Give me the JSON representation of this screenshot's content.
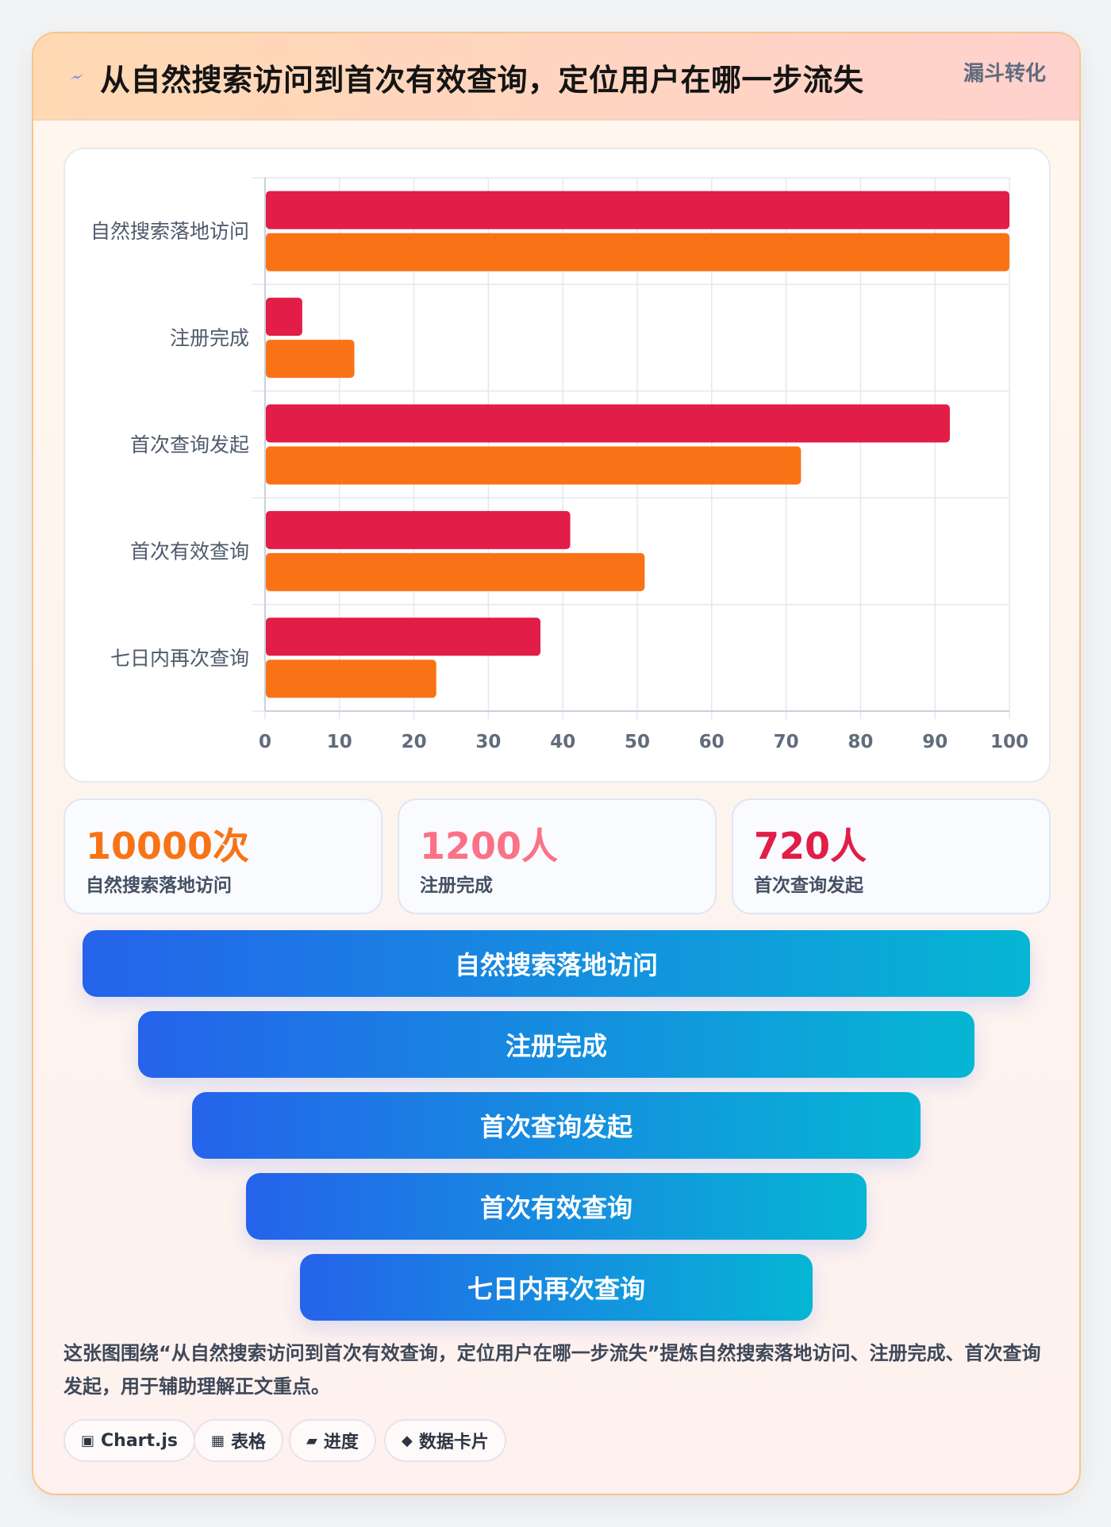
{
  "header": {
    "icon": "lightning-icon",
    "title": "从自然搜索访问到首次有效查询，定位用户在哪一步流失",
    "tag": "漏斗转化"
  },
  "colors": {
    "series_a": "#e11d48",
    "series_b": "#f97316",
    "funnel_from": "#2563eb",
    "funnel_to": "#06b6d4"
  },
  "chart_data": {
    "type": "bar",
    "orientation": "horizontal",
    "categories": [
      "自然搜索落地访问",
      "注册完成",
      "首次查询发起",
      "首次有效查询",
      "七日内再次查询"
    ],
    "series": [
      {
        "color": "#e11d48",
        "values": [
          100,
          5,
          92,
          41,
          37
        ]
      },
      {
        "color": "#f97316",
        "values": [
          100,
          12,
          72,
          51,
          23
        ]
      }
    ],
    "xlim": [
      0,
      100
    ],
    "xticks": [
      0,
      10,
      20,
      30,
      40,
      50,
      60,
      70,
      80,
      90,
      100
    ],
    "grid": true,
    "legend": "none"
  },
  "stats": [
    {
      "value": "10000次",
      "label": "自然搜索落地访问",
      "color": "#f97316"
    },
    {
      "value": "1200人",
      "label": "注册完成",
      "color": "#fb7185"
    },
    {
      "value": "720人",
      "label": "首次查询发起",
      "color": "#e11d48"
    }
  ],
  "funnel": [
    "自然搜索落地访问",
    "注册完成",
    "首次查询发起",
    "首次有效查询",
    "七日内再次查询"
  ],
  "description": "这张图围绕“从自然搜索访问到首次有效查询，定位用户在哪一步流失”提炼自然搜索落地访问、注册完成、首次查询发起，用于辅助理解正文重点。",
  "badges": [
    {
      "icon": "▣",
      "icon_name": "chart-icon",
      "label": "Chart.js"
    },
    {
      "icon": "▦",
      "icon_name": "table-icon",
      "label": "表格"
    },
    {
      "icon": "▰",
      "icon_name": "progress-icon",
      "label": "进度"
    },
    {
      "icon": "◆",
      "icon_name": "card-icon",
      "label": "数据卡片"
    }
  ]
}
